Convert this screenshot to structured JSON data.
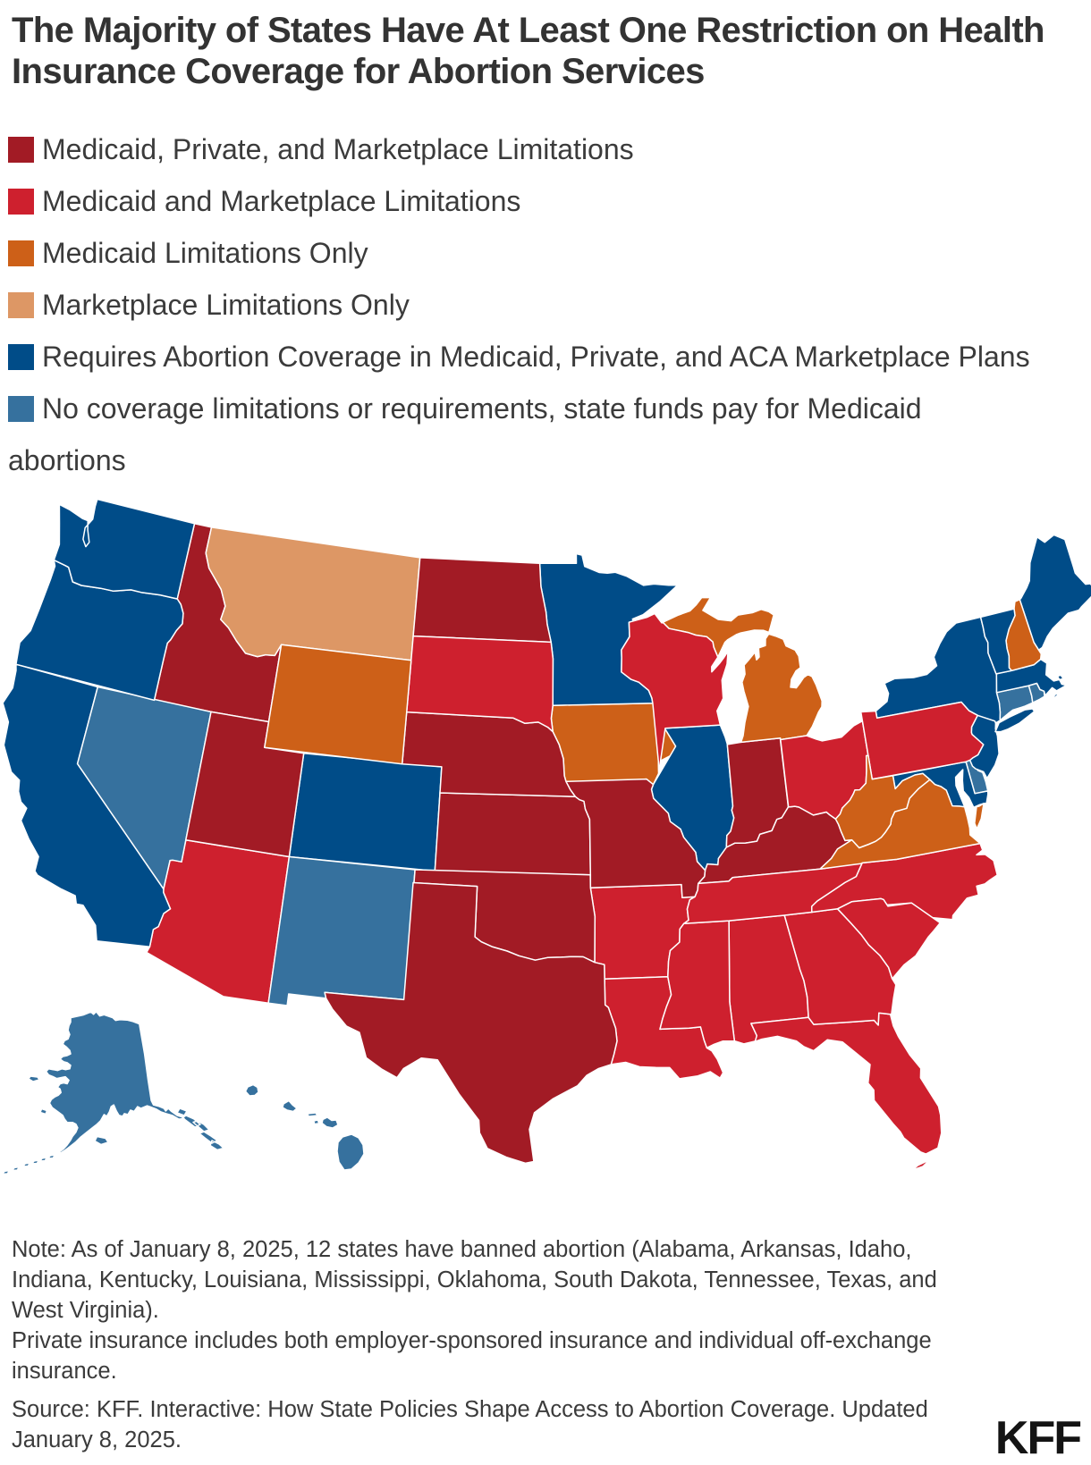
{
  "title": "The Majority of States Have At Least One Restriction on Health Insurance Coverage for Abortion Services",
  "legend": {
    "items": [
      {
        "key": "maroon",
        "label": "Medicaid, Private, and Marketplace Limitations",
        "color": "#A21B25"
      },
      {
        "key": "red",
        "label": "Medicaid and Marketplace Limitations",
        "color": "#CE202E"
      },
      {
        "key": "orange",
        "label": "Medicaid Limitations Only",
        "color": "#CD6018"
      },
      {
        "key": "peach",
        "label": "Marketplace Limitations Only",
        "color": "#DD9765"
      },
      {
        "key": "navy",
        "label": "Requires Abortion Coverage in Medicaid, Private, and ACA Marketplace Plans",
        "color": "#004C88"
      },
      {
        "key": "steel",
        "label": "No coverage limitations or requirements, state funds pay for Medicaid abortions",
        "color": "#36719E"
      }
    ]
  },
  "map": {
    "states": [
      {
        "id": "AK",
        "name": "Alaska",
        "category": "steel",
        "color": "#36719E"
      },
      {
        "id": "AL",
        "name": "Alabama",
        "category": "red",
        "color": "#CE202E"
      },
      {
        "id": "AR",
        "name": "Arkansas",
        "category": "red",
        "color": "#CE202E"
      },
      {
        "id": "AZ",
        "name": "Arizona",
        "category": "red",
        "color": "#CE202E"
      },
      {
        "id": "CA",
        "name": "California",
        "category": "navy",
        "color": "#004C88"
      },
      {
        "id": "CO",
        "name": "Colorado",
        "category": "navy",
        "color": "#004C88"
      },
      {
        "id": "CT",
        "name": "Connecticut",
        "category": "steel",
        "color": "#36719E"
      },
      {
        "id": "DE",
        "name": "Delaware",
        "category": "steel",
        "color": "#36719E"
      },
      {
        "id": "FL",
        "name": "Florida",
        "category": "red",
        "color": "#CE202E"
      },
      {
        "id": "GA",
        "name": "Georgia",
        "category": "red",
        "color": "#CE202E"
      },
      {
        "id": "HI",
        "name": "Hawaii",
        "category": "steel",
        "color": "#36719E"
      },
      {
        "id": "IA",
        "name": "Iowa",
        "category": "orange",
        "color": "#CD6018"
      },
      {
        "id": "ID",
        "name": "Idaho",
        "category": "maroon",
        "color": "#A21B25"
      },
      {
        "id": "IL",
        "name": "Illinois",
        "category": "navy",
        "color": "#004C88"
      },
      {
        "id": "IN",
        "name": "Indiana",
        "category": "maroon",
        "color": "#A21B25"
      },
      {
        "id": "KS",
        "name": "Kansas",
        "category": "maroon",
        "color": "#A21B25"
      },
      {
        "id": "KY",
        "name": "Kentucky",
        "category": "maroon",
        "color": "#A21B25"
      },
      {
        "id": "LA",
        "name": "Louisiana",
        "category": "red",
        "color": "#CE202E"
      },
      {
        "id": "MA",
        "name": "Massachusetts",
        "category": "navy",
        "color": "#004C88"
      },
      {
        "id": "MD",
        "name": "Maryland",
        "category": "navy",
        "color": "#004C88"
      },
      {
        "id": "ME",
        "name": "Maine",
        "category": "navy",
        "color": "#004C88"
      },
      {
        "id": "MI",
        "name": "Michigan",
        "category": "orange",
        "color": "#CD6018"
      },
      {
        "id": "MN",
        "name": "Minnesota",
        "category": "navy",
        "color": "#004C88"
      },
      {
        "id": "MO",
        "name": "Missouri",
        "category": "maroon",
        "color": "#A21B25"
      },
      {
        "id": "MS",
        "name": "Mississippi",
        "category": "red",
        "color": "#CE202E"
      },
      {
        "id": "MT",
        "name": "Montana",
        "category": "peach",
        "color": "#DD9765"
      },
      {
        "id": "NC",
        "name": "North Carolina",
        "category": "red",
        "color": "#CE202E"
      },
      {
        "id": "ND",
        "name": "North Dakota",
        "category": "maroon",
        "color": "#A21B25"
      },
      {
        "id": "NE",
        "name": "Nebraska",
        "category": "maroon",
        "color": "#A21B25"
      },
      {
        "id": "NH",
        "name": "New Hampshire",
        "category": "orange",
        "color": "#CD6018"
      },
      {
        "id": "NJ",
        "name": "New Jersey",
        "category": "navy",
        "color": "#004C88"
      },
      {
        "id": "NM",
        "name": "New Mexico",
        "category": "steel",
        "color": "#36719E"
      },
      {
        "id": "NV",
        "name": "Nevada",
        "category": "steel",
        "color": "#36719E"
      },
      {
        "id": "NY",
        "name": "New York",
        "category": "navy",
        "color": "#004C88"
      },
      {
        "id": "OH",
        "name": "Ohio",
        "category": "red",
        "color": "#CE202E"
      },
      {
        "id": "OK",
        "name": "Oklahoma",
        "category": "maroon",
        "color": "#A21B25"
      },
      {
        "id": "OR",
        "name": "Oregon",
        "category": "navy",
        "color": "#004C88"
      },
      {
        "id": "PA",
        "name": "Pennsylvania",
        "category": "red",
        "color": "#CE202E"
      },
      {
        "id": "RI",
        "name": "Rhode Island",
        "category": "steel",
        "color": "#36719E"
      },
      {
        "id": "SC",
        "name": "South Carolina",
        "category": "red",
        "color": "#CE202E"
      },
      {
        "id": "SD",
        "name": "South Dakota",
        "category": "red",
        "color": "#CE202E"
      },
      {
        "id": "TN",
        "name": "Tennessee",
        "category": "red",
        "color": "#CE202E"
      },
      {
        "id": "TX",
        "name": "Texas",
        "category": "maroon",
        "color": "#A21B25"
      },
      {
        "id": "UT",
        "name": "Utah",
        "category": "maroon",
        "color": "#A21B25"
      },
      {
        "id": "VA",
        "name": "Virginia",
        "category": "orange",
        "color": "#CD6018"
      },
      {
        "id": "VT",
        "name": "Vermont",
        "category": "navy",
        "color": "#004C88"
      },
      {
        "id": "WA",
        "name": "Washington",
        "category": "navy",
        "color": "#004C88"
      },
      {
        "id": "WI",
        "name": "Wisconsin",
        "category": "red",
        "color": "#CE202E"
      },
      {
        "id": "WV",
        "name": "West Virginia",
        "category": "orange",
        "color": "#CD6018"
      },
      {
        "id": "WY",
        "name": "Wyoming",
        "category": "orange",
        "color": "#CD6018"
      }
    ]
  },
  "notes": {
    "note1": "Note: As of January 8, 2025, 12 states have banned abortion (Alabama, Arkansas, Idaho, Indiana, Kentucky, Louisiana, Mississippi, Oklahoma, South Dakota, Tennessee, Texas, and West Virginia).",
    "note2": "Private insurance includes both employer-sponsored insurance and individual off-exchange insurance.",
    "source": "Source: KFF. Interactive: How State Policies Shape Access to Abortion Coverage. Updated January 8, 2025."
  },
  "logo": "KFF",
  "chart_data": {
    "type": "heatmap",
    "subtype": "us-state-choropleth",
    "title": "The Majority of States Have At Least One Restriction on Health Insurance Coverage for Abortion Services",
    "legend_position": "top-left",
    "categories": [
      "Medicaid, Private, and Marketplace Limitations",
      "Medicaid and Marketplace Limitations",
      "Medicaid Limitations Only",
      "Marketplace Limitations Only",
      "Requires Abortion Coverage in Medicaid, Private, and ACA Marketplace Plans",
      "No coverage limitations or requirements, state funds pay for Medicaid abortions"
    ],
    "category_colors": [
      "#A21B25",
      "#CE202E",
      "#CD6018",
      "#DD9765",
      "#004C88",
      "#36719E"
    ],
    "series": [
      {
        "state": "Alaska",
        "abbr": "AK",
        "category": "No coverage limitations or requirements, state funds pay for Medicaid abortions"
      },
      {
        "state": "Alabama",
        "abbr": "AL",
        "category": "Medicaid and Marketplace Limitations"
      },
      {
        "state": "Arkansas",
        "abbr": "AR",
        "category": "Medicaid and Marketplace Limitations"
      },
      {
        "state": "Arizona",
        "abbr": "AZ",
        "category": "Medicaid and Marketplace Limitations"
      },
      {
        "state": "California",
        "abbr": "CA",
        "category": "Requires Abortion Coverage in Medicaid, Private, and ACA Marketplace Plans"
      },
      {
        "state": "Colorado",
        "abbr": "CO",
        "category": "Requires Abortion Coverage in Medicaid, Private, and ACA Marketplace Plans"
      },
      {
        "state": "Connecticut",
        "abbr": "CT",
        "category": "No coverage limitations or requirements, state funds pay for Medicaid abortions"
      },
      {
        "state": "Delaware",
        "abbr": "DE",
        "category": "No coverage limitations or requirements, state funds pay for Medicaid abortions"
      },
      {
        "state": "Florida",
        "abbr": "FL",
        "category": "Medicaid and Marketplace Limitations"
      },
      {
        "state": "Georgia",
        "abbr": "GA",
        "category": "Medicaid and Marketplace Limitations"
      },
      {
        "state": "Hawaii",
        "abbr": "HI",
        "category": "No coverage limitations or requirements, state funds pay for Medicaid abortions"
      },
      {
        "state": "Iowa",
        "abbr": "IA",
        "category": "Medicaid Limitations Only"
      },
      {
        "state": "Idaho",
        "abbr": "ID",
        "category": "Medicaid, Private, and Marketplace Limitations"
      },
      {
        "state": "Illinois",
        "abbr": "IL",
        "category": "Requires Abortion Coverage in Medicaid, Private, and ACA Marketplace Plans"
      },
      {
        "state": "Indiana",
        "abbr": "IN",
        "category": "Medicaid, Private, and Marketplace Limitations"
      },
      {
        "state": "Kansas",
        "abbr": "KS",
        "category": "Medicaid, Private, and Marketplace Limitations"
      },
      {
        "state": "Kentucky",
        "abbr": "KY",
        "category": "Medicaid, Private, and Marketplace Limitations"
      },
      {
        "state": "Louisiana",
        "abbr": "LA",
        "category": "Medicaid and Marketplace Limitations"
      },
      {
        "state": "Massachusetts",
        "abbr": "MA",
        "category": "Requires Abortion Coverage in Medicaid, Private, and ACA Marketplace Plans"
      },
      {
        "state": "Maryland",
        "abbr": "MD",
        "category": "Requires Abortion Coverage in Medicaid, Private, and ACA Marketplace Plans"
      },
      {
        "state": "Maine",
        "abbr": "ME",
        "category": "Requires Abortion Coverage in Medicaid, Private, and ACA Marketplace Plans"
      },
      {
        "state": "Michigan",
        "abbr": "MI",
        "category": "Medicaid Limitations Only"
      },
      {
        "state": "Minnesota",
        "abbr": "MN",
        "category": "Requires Abortion Coverage in Medicaid, Private, and ACA Marketplace Plans"
      },
      {
        "state": "Missouri",
        "abbr": "MO",
        "category": "Medicaid, Private, and Marketplace Limitations"
      },
      {
        "state": "Mississippi",
        "abbr": "MS",
        "category": "Medicaid and Marketplace Limitations"
      },
      {
        "state": "Montana",
        "abbr": "MT",
        "category": "Marketplace Limitations Only"
      },
      {
        "state": "North Carolina",
        "abbr": "NC",
        "category": "Medicaid and Marketplace Limitations"
      },
      {
        "state": "North Dakota",
        "abbr": "ND",
        "category": "Medicaid, Private, and Marketplace Limitations"
      },
      {
        "state": "Nebraska",
        "abbr": "NE",
        "category": "Medicaid, Private, and Marketplace Limitations"
      },
      {
        "state": "New Hampshire",
        "abbr": "NH",
        "category": "Medicaid Limitations Only"
      },
      {
        "state": "New Jersey",
        "abbr": "NJ",
        "category": "Requires Abortion Coverage in Medicaid, Private, and ACA Marketplace Plans"
      },
      {
        "state": "New Mexico",
        "abbr": "NM",
        "category": "No coverage limitations or requirements, state funds pay for Medicaid abortions"
      },
      {
        "state": "Nevada",
        "abbr": "NV",
        "category": "No coverage limitations or requirements, state funds pay for Medicaid abortions"
      },
      {
        "state": "New York",
        "abbr": "NY",
        "category": "Requires Abortion Coverage in Medicaid, Private, and ACA Marketplace Plans"
      },
      {
        "state": "Ohio",
        "abbr": "OH",
        "category": "Medicaid and Marketplace Limitations"
      },
      {
        "state": "Oklahoma",
        "abbr": "OK",
        "category": "Medicaid, Private, and Marketplace Limitations"
      },
      {
        "state": "Oregon",
        "abbr": "OR",
        "category": "Requires Abortion Coverage in Medicaid, Private, and ACA Marketplace Plans"
      },
      {
        "state": "Pennsylvania",
        "abbr": "PA",
        "category": "Medicaid and Marketplace Limitations"
      },
      {
        "state": "Rhode Island",
        "abbr": "RI",
        "category": "No coverage limitations or requirements, state funds pay for Medicaid abortions"
      },
      {
        "state": "South Carolina",
        "abbr": "SC",
        "category": "Medicaid and Marketplace Limitations"
      },
      {
        "state": "South Dakota",
        "abbr": "SD",
        "category": "Medicaid and Marketplace Limitations"
      },
      {
        "state": "Tennessee",
        "abbr": "TN",
        "category": "Medicaid and Marketplace Limitations"
      },
      {
        "state": "Texas",
        "abbr": "TX",
        "category": "Medicaid, Private, and Marketplace Limitations"
      },
      {
        "state": "Utah",
        "abbr": "UT",
        "category": "Medicaid, Private, and Marketplace Limitations"
      },
      {
        "state": "Virginia",
        "abbr": "VA",
        "category": "Medicaid Limitations Only"
      },
      {
        "state": "Vermont",
        "abbr": "VT",
        "category": "Requires Abortion Coverage in Medicaid, Private, and ACA Marketplace Plans"
      },
      {
        "state": "Washington",
        "abbr": "WA",
        "category": "Requires Abortion Coverage in Medicaid, Private, and ACA Marketplace Plans"
      },
      {
        "state": "Wisconsin",
        "abbr": "WI",
        "category": "Medicaid and Marketplace Limitations"
      },
      {
        "state": "West Virginia",
        "abbr": "WV",
        "category": "Medicaid Limitations Only"
      },
      {
        "state": "Wyoming",
        "abbr": "WY",
        "category": "Medicaid Limitations Only"
      }
    ]
  }
}
